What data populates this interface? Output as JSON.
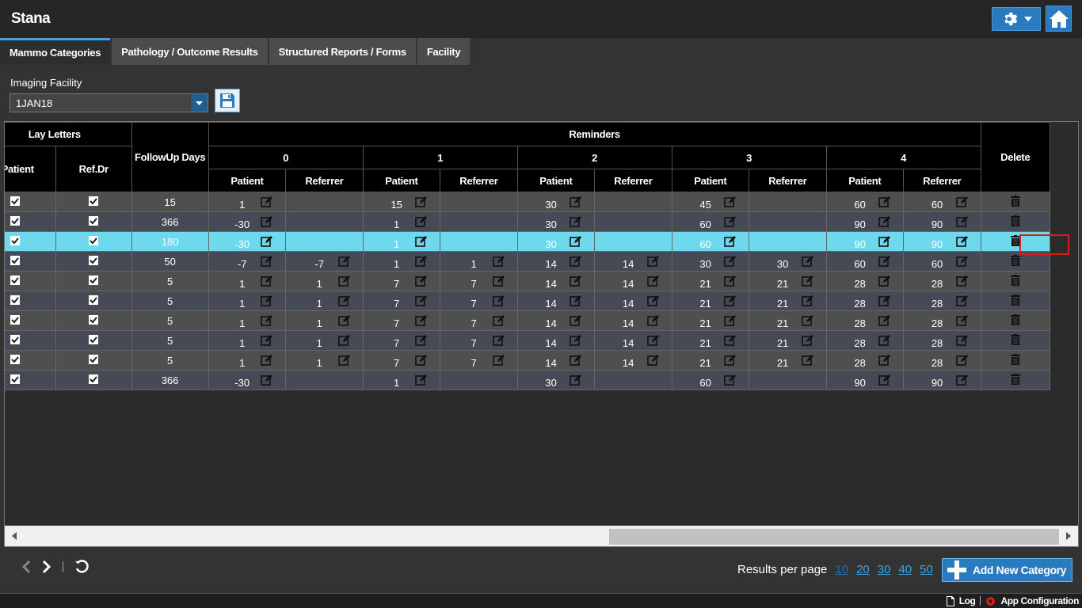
{
  "app": {
    "title": "Stana"
  },
  "tabs": [
    {
      "label": "Mammo Categories",
      "active": true
    },
    {
      "label": "Pathology / Outcome Results"
    },
    {
      "label": "Structured Reports / Forms"
    },
    {
      "label": "Facility"
    }
  ],
  "facility": {
    "label": "Imaging Facility",
    "selected": "1JAN18"
  },
  "table": {
    "headers": {
      "lay_letters": "Lay Letters",
      "lay_patient": "Patient",
      "lay_refdr": "Ref.Dr",
      "followup": "FollowUp Days",
      "reminders": "Reminders",
      "groups": [
        "0",
        "1",
        "2",
        "3",
        "4"
      ],
      "patient": "Patient",
      "referrer": "Referrer",
      "delete": "Delete"
    },
    "rows": [
      {
        "followup": "15",
        "r": [
          "1",
          "",
          "15",
          "",
          "30",
          "",
          "45",
          "",
          "60",
          "60"
        ]
      },
      {
        "followup": "366",
        "r": [
          "-30",
          "",
          "1",
          "",
          "30",
          "",
          "60",
          "",
          "90",
          "90"
        ]
      },
      {
        "followup": "180",
        "r": [
          "-30",
          "",
          "1",
          "",
          "30",
          "",
          "60",
          "",
          "90",
          "90"
        ],
        "selected": true
      },
      {
        "followup": "50",
        "r": [
          "-7",
          "-7",
          "1",
          "1",
          "14",
          "14",
          "30",
          "30",
          "60",
          "60"
        ]
      },
      {
        "followup": "5",
        "r": [
          "1",
          "1",
          "7",
          "7",
          "14",
          "14",
          "21",
          "21",
          "28",
          "28"
        ]
      },
      {
        "followup": "5",
        "r": [
          "1",
          "1",
          "7",
          "7",
          "14",
          "14",
          "21",
          "21",
          "28",
          "28"
        ]
      },
      {
        "followup": "5",
        "r": [
          "1",
          "1",
          "7",
          "7",
          "14",
          "14",
          "21",
          "21",
          "28",
          "28"
        ]
      },
      {
        "followup": "5",
        "r": [
          "1",
          "1",
          "7",
          "7",
          "14",
          "14",
          "21",
          "21",
          "28",
          "28"
        ]
      },
      {
        "followup": "5",
        "r": [
          "1",
          "1",
          "7",
          "7",
          "14",
          "14",
          "21",
          "21",
          "28",
          "28"
        ]
      },
      {
        "followup": "366",
        "r": [
          "-30",
          "",
          "1",
          "",
          "30",
          "",
          "60",
          "",
          "90",
          "90"
        ]
      }
    ]
  },
  "pager": {
    "results_label": "Results per page",
    "sizes": [
      "10",
      "20",
      "30",
      "40",
      "50"
    ]
  },
  "add_button": {
    "label": "Add New Category"
  },
  "footer": {
    "log": "Log",
    "app_config": "App Configuration"
  }
}
